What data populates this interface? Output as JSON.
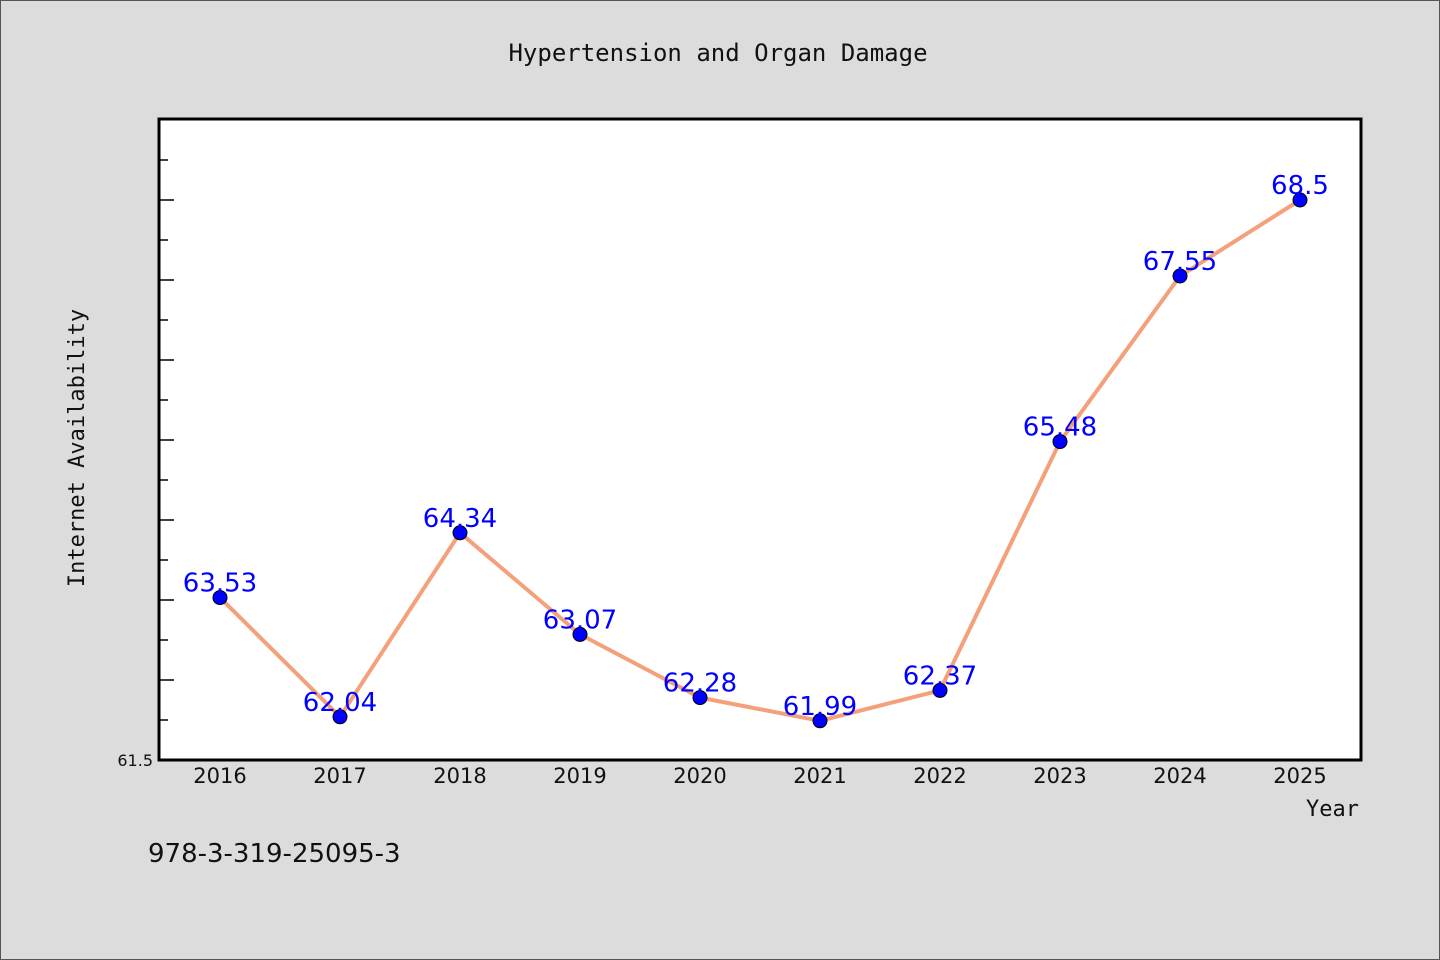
{
  "chart_data": {
    "type": "line",
    "title": "Hypertension and Organ Damage",
    "xlabel": "Year",
    "ylabel": "Internet Availability",
    "categories": [
      "2016",
      "2017",
      "2018",
      "2019",
      "2020",
      "2021",
      "2022",
      "2023",
      "2024",
      "2025"
    ],
    "series": [
      {
        "values": [
          63.53,
          62.04,
          64.34,
          63.07,
          62.28,
          61.99,
          62.37,
          65.48,
          67.55,
          68.5
        ],
        "labels": [
          "63.53",
          "62.04",
          "64.34",
          "63.07",
          "62.28",
          "61.99",
          "62.37",
          "65.48",
          "67.55",
          "68.5"
        ],
        "line_color": "#f4a07a",
        "marker_color": "#0000ff"
      }
    ],
    "ylim": [
      61.5,
      69.5
    ],
    "ylim_min_label": "61.5",
    "grid": false
  },
  "footnote": "978-3-319-25095-3"
}
